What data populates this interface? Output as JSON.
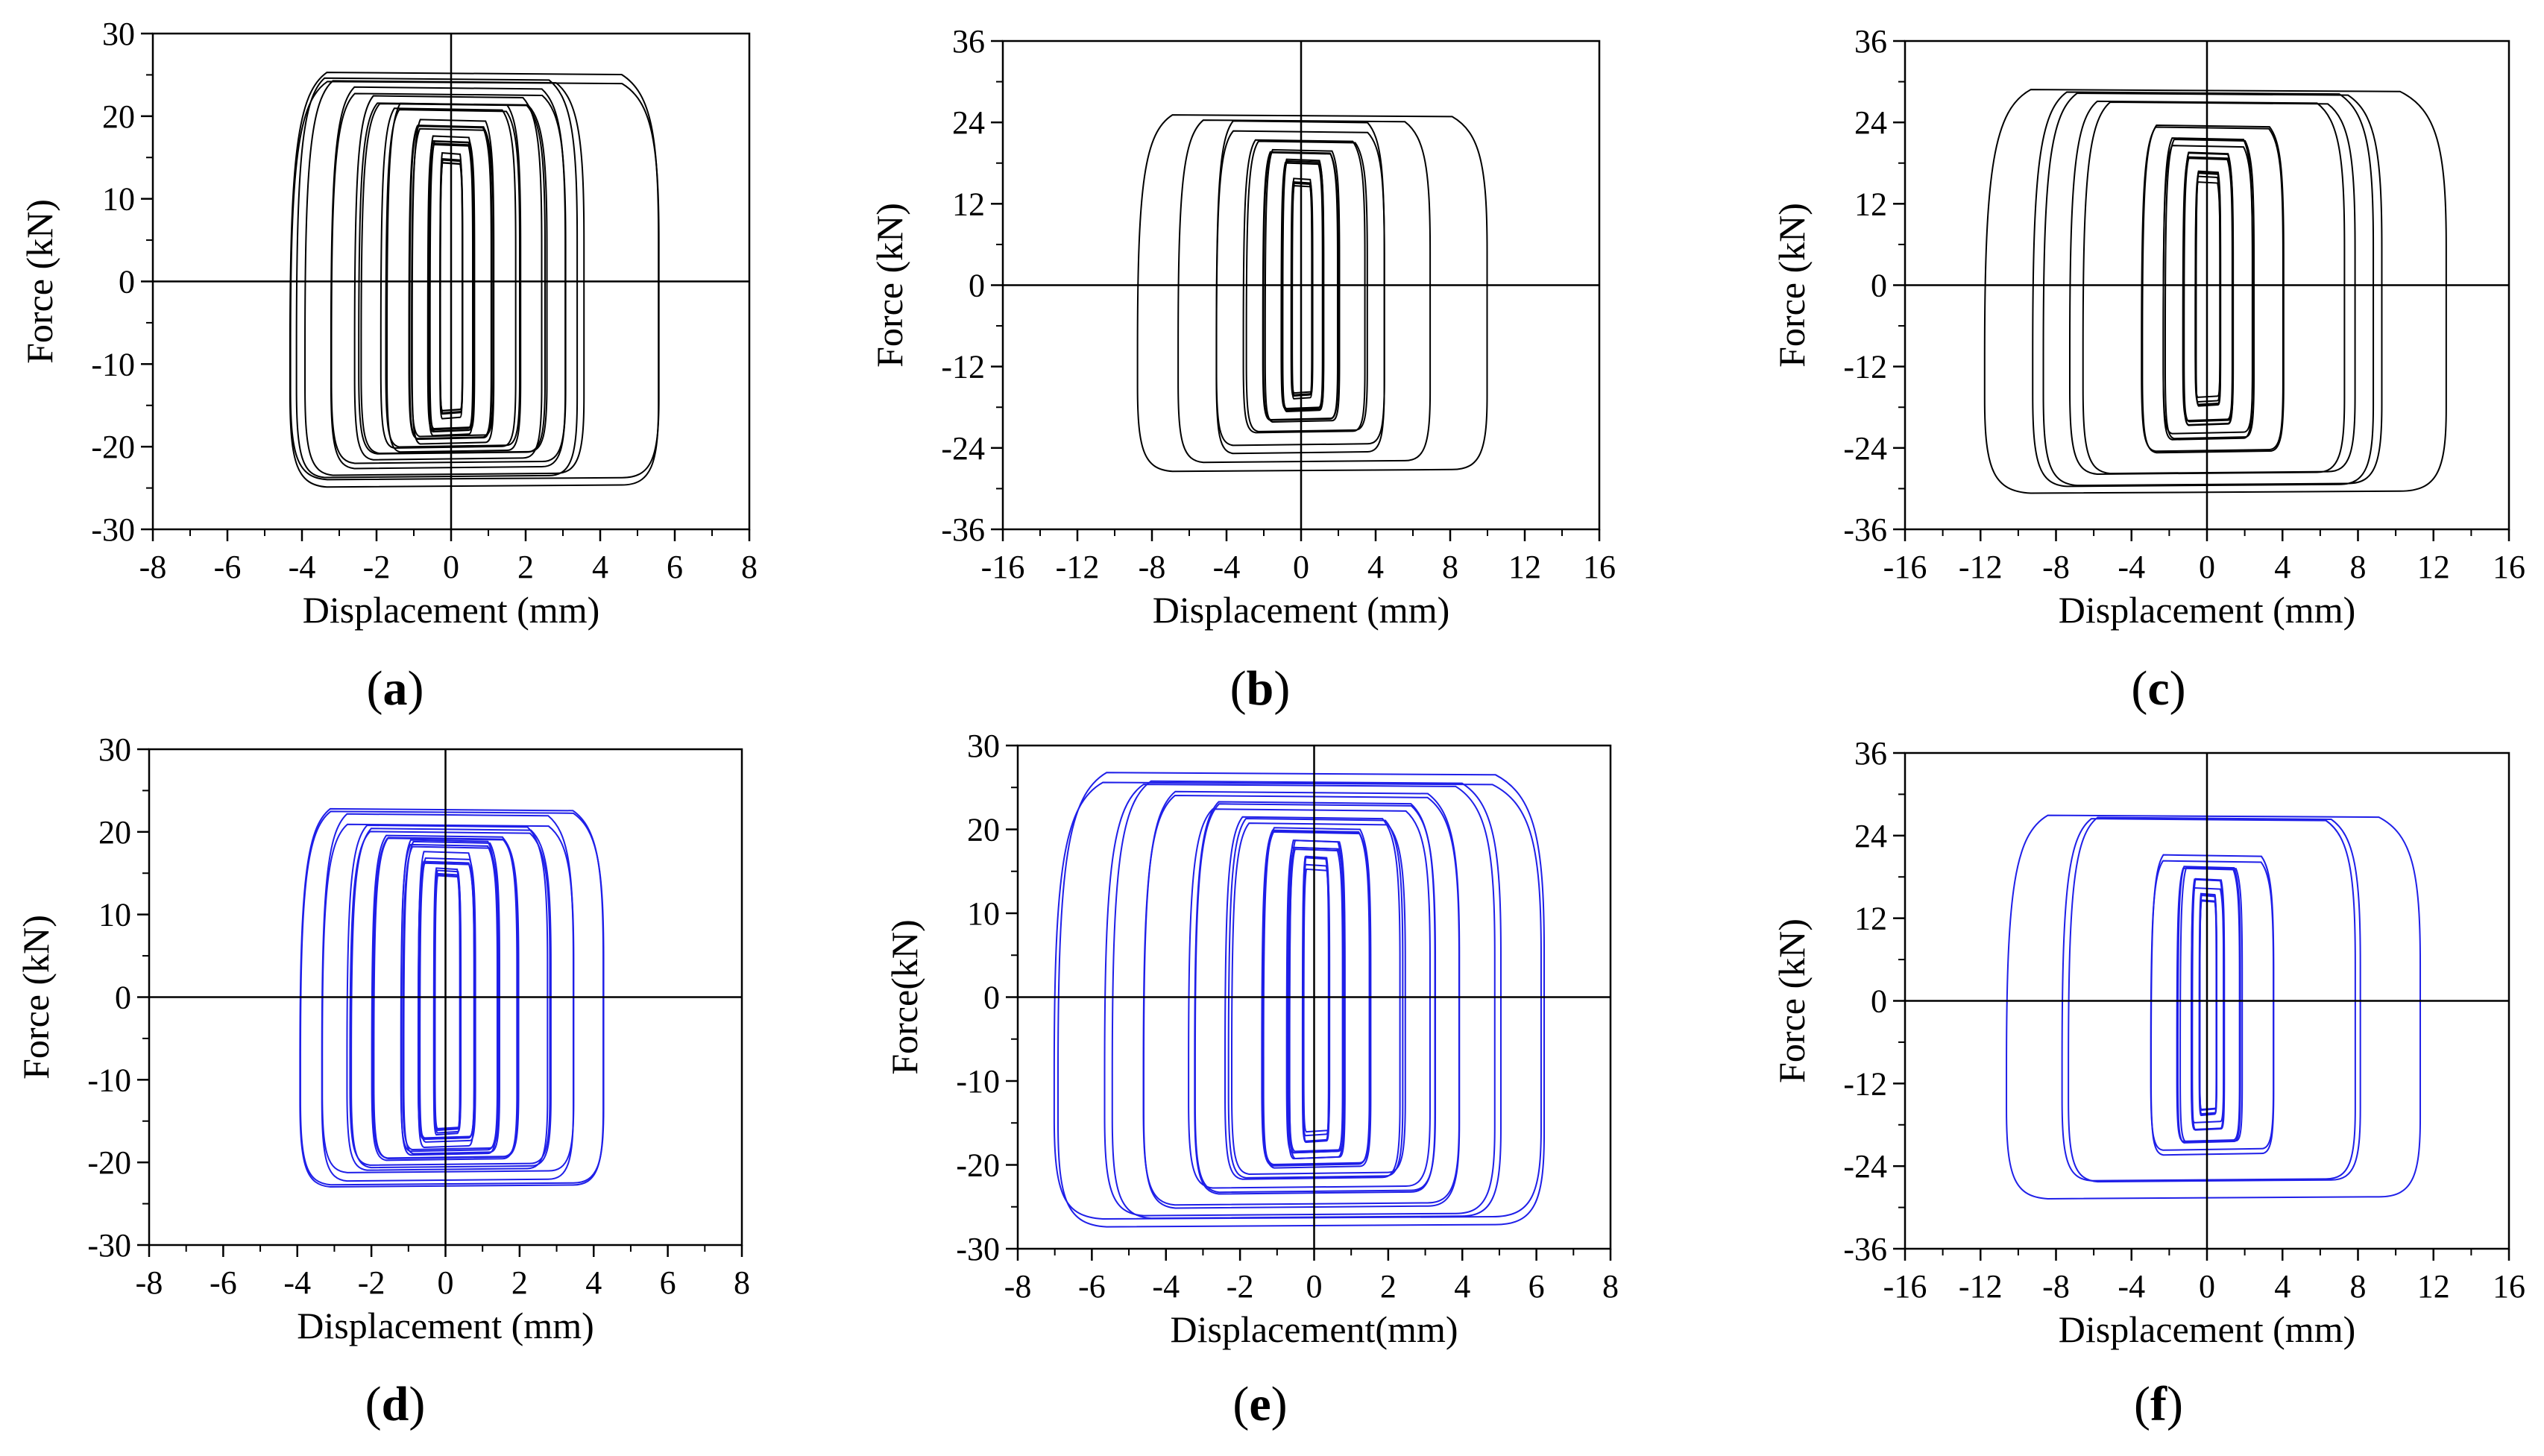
{
  "figure": {
    "description_label": "Force-displacement hysteresis curves"
  },
  "chart_data": [
    {
      "type": "line",
      "panel": "a",
      "panel_label": "a",
      "xlabel": "Displacement (mm)",
      "ylabel": "Force (kN)",
      "xlim": [
        -8,
        8
      ],
      "ylim": [
        -30,
        30
      ],
      "xticks": [
        -8,
        -6,
        -4,
        -2,
        0,
        2,
        4,
        6,
        8
      ],
      "yticks": [
        -30,
        -20,
        -10,
        0,
        10,
        20,
        30
      ],
      "xtick_labels": [
        "-8",
        "-6",
        "-4",
        "-2",
        "0",
        "2",
        "4",
        "6",
        "8"
      ],
      "ytick_labels": [
        "-30",
        "-20",
        "-10",
        "0",
        "10",
        "20",
        "30"
      ],
      "color": "#000000",
      "series": [
        {
          "name": "hysteresis",
          "loops": [
            {
              "xmin": -4.4,
              "xmax": 5.5,
              "fmax": 24.5,
              "fmin": -24.0,
              "rep": 2
            },
            {
              "xmin": -4.0,
              "xmax": 3.5,
              "fmax": 24.0,
              "fmin": -23.0,
              "rep": 2
            },
            {
              "xmin": -3.3,
              "xmax": 3.0,
              "fmax": 23.0,
              "fmin": -22.0,
              "rep": 2
            },
            {
              "xmin": -2.5,
              "xmax": 2.5,
              "fmax": 22.0,
              "fmin": -21.0,
              "rep": 3
            },
            {
              "xmin": -1.8,
              "xmax": 1.8,
              "fmax": 21.0,
              "fmin": -20.0,
              "rep": 3
            },
            {
              "xmin": -1.1,
              "xmax": 1.1,
              "fmax": 19.0,
              "fmin": -19.0,
              "rep": 4
            },
            {
              "xmin": -0.6,
              "xmax": 0.6,
              "fmax": 17.0,
              "fmin": -18.0,
              "rep": 5
            },
            {
              "xmin": -0.3,
              "xmax": 0.3,
              "fmax": 15.0,
              "fmin": -16.0,
              "rep": 5
            }
          ]
        }
      ]
    },
    {
      "type": "line",
      "panel": "b",
      "panel_label": "b",
      "xlabel": "Displacement (mm)",
      "ylabel": "Force (kN)",
      "xlim": [
        -16,
        16
      ],
      "ylim": [
        -36,
        36
      ],
      "xticks": [
        -16,
        -12,
        -8,
        -4,
        0,
        4,
        8,
        12,
        16
      ],
      "yticks": [
        -36,
        -24,
        -12,
        0,
        12,
        24,
        36
      ],
      "xtick_labels": [
        "-16",
        "-12",
        "-8",
        "-4",
        "0",
        "4",
        "8",
        "12",
        "16"
      ],
      "ytick_labels": [
        "-36",
        "-24",
        "-12",
        "0",
        "12",
        "24",
        "36"
      ],
      "color": "#000000",
      "series": [
        {
          "name": "hysteresis",
          "loops": [
            {
              "xmin": -9.0,
              "xmax": 9.8,
              "fmax": 25.5,
              "fmin": -27.5,
              "rep": 1
            },
            {
              "xmin": -6.5,
              "xmax": 7.0,
              "fmax": 24.5,
              "fmin": -26.0,
              "rep": 1
            },
            {
              "xmin": -4.5,
              "xmax": 4.5,
              "fmax": 23.5,
              "fmin": -24.0,
              "rep": 2
            },
            {
              "xmin": -3.0,
              "xmax": 3.5,
              "fmax": 22.0,
              "fmin": -22.0,
              "rep": 2
            },
            {
              "xmin": -2.0,
              "xmax": 2.0,
              "fmax": 20.0,
              "fmin": -20.0,
              "rep": 3
            },
            {
              "xmin": -1.0,
              "xmax": 1.2,
              "fmax": 18.0,
              "fmin": -18.0,
              "rep": 4
            },
            {
              "xmin": -0.5,
              "xmax": 0.6,
              "fmax": 15.0,
              "fmin": -16.0,
              "rep": 5
            }
          ]
        }
      ]
    },
    {
      "type": "line",
      "panel": "c",
      "panel_label": "c",
      "xlabel": "Displacement (mm)",
      "ylabel": "Force (kN)",
      "xlim": [
        -16,
        16
      ],
      "ylim": [
        -36,
        36
      ],
      "xticks": [
        -16,
        -12,
        -8,
        -4,
        0,
        4,
        8,
        12,
        16
      ],
      "yticks": [
        -36,
        -24,
        -12,
        0,
        12,
        24,
        36
      ],
      "xtick_labels": [
        "-16",
        "-12",
        "-8",
        "-4",
        "0",
        "4",
        "8",
        "12",
        "16"
      ],
      "ytick_labels": [
        "-36",
        "-24",
        "-12",
        "0",
        "12",
        "24",
        "36"
      ],
      "color": "#000000",
      "series": [
        {
          "name": "hysteresis",
          "loops": [
            {
              "xmin": -12.0,
              "xmax": 12.5,
              "fmax": 29.0,
              "fmin": -30.5,
              "rep": 1
            },
            {
              "xmin": -9.0,
              "xmax": 9.0,
              "fmax": 28.0,
              "fmin": -29.0,
              "rep": 2
            },
            {
              "xmin": -7.0,
              "xmax": 7.5,
              "fmax": 27.0,
              "fmin": -27.5,
              "rep": 2
            },
            {
              "xmin": -3.5,
              "xmax": 4.0,
              "fmax": 23.0,
              "fmin": -24.0,
              "rep": 2
            },
            {
              "xmin": -2.2,
              "xmax": 2.5,
              "fmax": 21.0,
              "fmin": -22.0,
              "rep": 3
            },
            {
              "xmin": -1.2,
              "xmax": 1.4,
              "fmax": 19.0,
              "fmin": -20.0,
              "rep": 4
            },
            {
              "xmin": -0.6,
              "xmax": 0.7,
              "fmax": 16.0,
              "fmin": -17.0,
              "rep": 5
            }
          ]
        }
      ]
    },
    {
      "type": "line",
      "panel": "d",
      "panel_label": "d",
      "xlabel": "Displacement (mm)",
      "ylabel": "Force (kN)",
      "xlim": [
        -8,
        8
      ],
      "ylim": [
        -30,
        30
      ],
      "xticks": [
        -8,
        -6,
        -4,
        -2,
        0,
        2,
        4,
        6,
        8
      ],
      "yticks": [
        -30,
        -20,
        -10,
        0,
        10,
        20,
        30
      ],
      "xtick_labels": [
        "-8",
        "-6",
        "-4",
        "-2",
        "0",
        "2",
        "4",
        "6",
        "8"
      ],
      "ytick_labels": [
        "-30",
        "-20",
        "-10",
        "0",
        "10",
        "20",
        "30"
      ],
      "color": "#1f1fe8",
      "series": [
        {
          "name": "hysteresis",
          "loops": [
            {
              "xmin": -4.0,
              "xmax": 4.2,
              "fmax": 22.5,
              "fmin": -22.5,
              "rep": 2
            },
            {
              "xmin": -3.4,
              "xmax": 3.4,
              "fmax": 21.5,
              "fmin": -21.5,
              "rep": 2
            },
            {
              "xmin": -2.6,
              "xmax": 2.8,
              "fmax": 20.5,
              "fmin": -20.5,
              "rep": 3
            },
            {
              "xmin": -1.9,
              "xmax": 2.0,
              "fmax": 19.5,
              "fmin": -19.5,
              "rep": 3
            },
            {
              "xmin": -1.2,
              "xmax": 1.4,
              "fmax": 18.5,
              "fmin": -18.5,
              "rep": 4
            },
            {
              "xmin": -0.7,
              "xmax": 0.8,
              "fmax": 17.0,
              "fmin": -17.5,
              "rep": 5
            },
            {
              "xmin": -0.3,
              "xmax": 0.4,
              "fmax": 15.0,
              "fmin": -16.0,
              "rep": 5
            }
          ]
        }
      ]
    },
    {
      "type": "line",
      "panel": "e",
      "panel_label": "e",
      "xlabel": "Displacement(mm)",
      "ylabel": "Force(kN)",
      "xlim": [
        -8,
        8
      ],
      "ylim": [
        -30,
        30
      ],
      "xticks": [
        -8,
        -6,
        -4,
        -2,
        0,
        2,
        4,
        6,
        8
      ],
      "yticks": [
        -30,
        -20,
        -10,
        0,
        10,
        20,
        30
      ],
      "xtick_labels": [
        "-8",
        "-6",
        "-4",
        "-2",
        "0",
        "2",
        "4",
        "6",
        "8"
      ],
      "ytick_labels": [
        "-30",
        "-20",
        "-10",
        "0",
        "10",
        "20",
        "30"
      ],
      "color": "#1f1fe8",
      "series": [
        {
          "name": "hysteresis",
          "loops": [
            {
              "xmin": -6.8,
              "xmax": 6.3,
              "fmax": 26.0,
              "fmin": -26.5,
              "rep": 2
            },
            {
              "xmin": -5.5,
              "xmax": 5.0,
              "fmax": 25.0,
              "fmin": -25.5,
              "rep": 2
            },
            {
              "xmin": -4.5,
              "xmax": 4.0,
              "fmax": 24.0,
              "fmin": -24.5,
              "rep": 2
            },
            {
              "xmin": -3.3,
              "xmax": 3.2,
              "fmax": 23.0,
              "fmin": -23.0,
              "rep": 3
            },
            {
              "xmin": -2.3,
              "xmax": 2.4,
              "fmax": 21.5,
              "fmin": -21.5,
              "rep": 3
            },
            {
              "xmin": -1.4,
              "xmax": 1.5,
              "fmax": 20.0,
              "fmin": -20.0,
              "rep": 4
            },
            {
              "xmin": -0.7,
              "xmax": 0.8,
              "fmax": 18.0,
              "fmin": -18.5,
              "rep": 5
            },
            {
              "xmin": -0.3,
              "xmax": 0.4,
              "fmax": 16.0,
              "fmin": -16.5,
              "rep": 5
            }
          ]
        }
      ]
    },
    {
      "type": "line",
      "panel": "f",
      "panel_label": "f",
      "xlabel": "Displacement (mm)",
      "ylabel": "Force (kN)",
      "xlim": [
        -16,
        16
      ],
      "ylim": [
        -36,
        36
      ],
      "xticks": [
        -16,
        -12,
        -8,
        -4,
        0,
        4,
        8,
        12,
        16
      ],
      "yticks": [
        -36,
        -24,
        -12,
        0,
        12,
        24,
        36
      ],
      "xtick_labels": [
        "-16",
        "-12",
        "-8",
        "-4",
        "0",
        "4",
        "8",
        "12",
        "16"
      ],
      "ytick_labels": [
        "-36",
        "-24",
        "-12",
        "0",
        "12",
        "24",
        "36"
      ],
      "color": "#1f1fe8",
      "series": [
        {
          "name": "hysteresis",
          "loops": [
            {
              "xmin": -11.0,
              "xmax": 11.0,
              "fmax": 27.0,
              "fmin": -28.5,
              "rep": 1
            },
            {
              "xmin": -7.5,
              "xmax": 8.0,
              "fmax": 26.0,
              "fmin": -25.5,
              "rep": 2
            },
            {
              "xmin": -3.0,
              "xmax": 3.5,
              "fmax": 21.0,
              "fmin": -22.0,
              "rep": 2
            },
            {
              "xmin": -1.5,
              "xmax": 1.8,
              "fmax": 19.0,
              "fmin": -20.0,
              "rep": 3
            },
            {
              "xmin": -0.8,
              "xmax": 0.9,
              "fmax": 17.0,
              "fmin": -18.0,
              "rep": 4
            },
            {
              "xmin": -0.4,
              "xmax": 0.5,
              "fmax": 15.0,
              "fmin": -16.0,
              "rep": 5
            }
          ]
        }
      ]
    }
  ]
}
